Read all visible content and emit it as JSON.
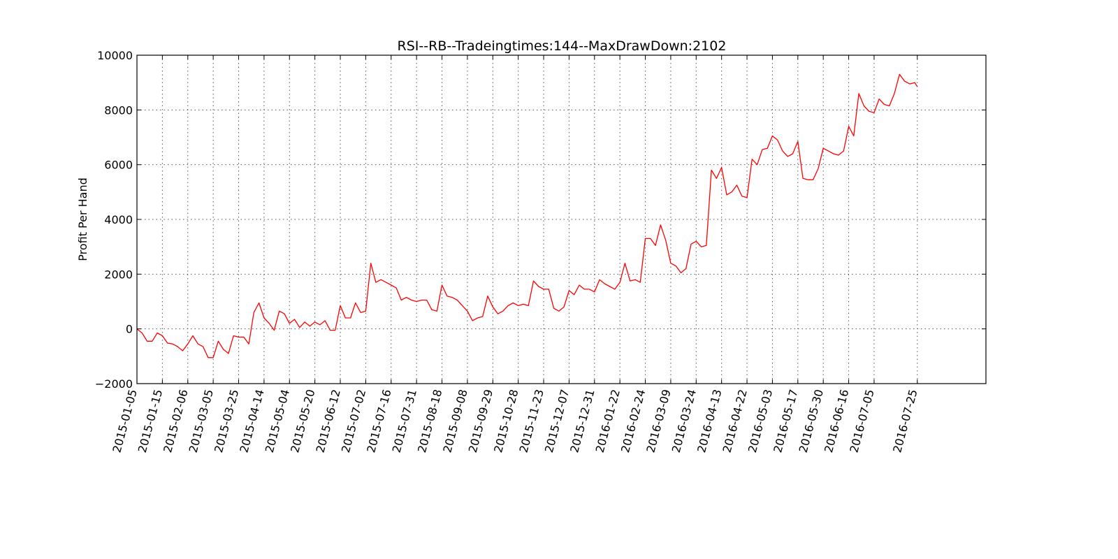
{
  "chart_data": {
    "type": "line",
    "title": "RSI--RB--Tradeingtimes:144--MaxDrawDown:2102",
    "xlabel": "",
    "ylabel": "Profit Per Hand",
    "ylim": [
      -2000,
      10000
    ],
    "yticks": [
      -2000,
      0,
      2000,
      4000,
      6000,
      8000,
      10000
    ],
    "ytick_labels": [
      "−2000",
      "0",
      "2000",
      "4000",
      "6000",
      "8000",
      "10000"
    ],
    "xticks": [
      "2015-01-05",
      "2015-01-15",
      "2015-02-06",
      "2015-03-05",
      "2015-03-25",
      "2015-04-14",
      "2015-05-04",
      "2015-05-20",
      "2015-06-12",
      "2015-07-02",
      "2015-07-16",
      "2015-07-31",
      "2015-08-18",
      "2015-09-08",
      "2015-09-29",
      "2015-10-28",
      "2015-11-23",
      "2015-12-07",
      "2015-12-31",
      "2016-01-22",
      "2016-02-24",
      "2016-03-09",
      "2016-03-24",
      "2016-04-13",
      "2016-04-22",
      "2016-05-03",
      "2016-05-17",
      "2016-05-30",
      "2016-06-16",
      "2016-07-05",
      "2016-07-25"
    ],
    "xtick_index": [
      0,
      10,
      20,
      30,
      40,
      50,
      60,
      70,
      80,
      90,
      100,
      110,
      120,
      130,
      140,
      150,
      160,
      170,
      180,
      190,
      200,
      210,
      220,
      230,
      240,
      250,
      260,
      270,
      280,
      290,
      307
    ],
    "x_index_max": 334,
    "grid": true,
    "line_color": "#ff0000",
    "series": [
      {
        "name": "",
        "x": [
          0,
          2,
          4,
          6,
          8,
          10,
          12,
          14,
          16,
          18,
          20,
          22,
          24,
          26,
          28,
          30,
          32,
          34,
          36,
          38,
          40,
          42,
          44,
          46,
          48,
          50,
          52,
          54,
          56,
          58,
          60,
          62,
          64,
          66,
          68,
          70,
          72,
          74,
          76,
          78,
          80,
          82,
          84,
          86,
          88,
          90,
          92,
          94,
          96,
          98,
          100,
          102,
          104,
          106,
          108,
          110,
          112,
          114,
          116,
          118,
          120,
          122,
          124,
          126,
          128,
          130,
          132,
          134,
          136,
          138,
          140,
          142,
          144,
          146,
          148,
          150,
          152,
          154,
          156,
          158,
          160,
          162,
          164,
          166,
          168,
          170,
          172,
          174,
          176,
          178,
          180,
          182,
          184,
          186,
          188,
          190,
          192,
          194,
          196,
          198,
          200,
          202,
          204,
          206,
          208,
          210,
          212,
          214,
          216,
          218,
          220,
          222,
          224,
          226,
          228,
          230,
          232,
          234,
          236,
          238,
          240,
          242,
          244,
          246,
          248,
          250,
          252,
          254,
          256,
          258,
          260,
          262,
          264,
          266,
          268,
          270,
          272,
          274,
          276,
          278,
          280,
          282,
          284,
          286,
          288,
          290,
          292,
          294,
          296,
          298,
          300,
          302,
          304,
          306,
          307
        ],
        "values": [
          0,
          -150,
          -450,
          -450,
          -150,
          -250,
          -520,
          -550,
          -650,
          -800,
          -550,
          -250,
          -550,
          -650,
          -1050,
          -1050,
          -450,
          -750,
          -900,
          -250,
          -300,
          -300,
          -550,
          600,
          950,
          400,
          200,
          -50,
          650,
          550,
          200,
          350,
          50,
          250,
          100,
          250,
          150,
          300,
          -50,
          -50,
          850,
          400,
          400,
          950,
          600,
          650,
          2400,
          1700,
          1800,
          1700,
          1600,
          1500,
          1050,
          1150,
          1050,
          1000,
          1050,
          1050,
          700,
          650,
          1600,
          1200,
          1150,
          1050,
          850,
          650,
          300,
          400,
          450,
          1200,
          800,
          550,
          650,
          850,
          950,
          850,
          900,
          850,
          1750,
          1550,
          1450,
          1450,
          750,
          650,
          800,
          1400,
          1250,
          1600,
          1450,
          1450,
          1350,
          1800,
          1650,
          1550,
          1450,
          1700,
          2400,
          1750,
          1800,
          1700,
          3300,
          3300,
          3050,
          3800,
          3250,
          2400,
          2300,
          2050,
          2200,
          3100,
          3200,
          3000,
          3050,
          5800,
          5500,
          5900,
          4900,
          5000,
          5250,
          4850,
          4800,
          6200,
          6000,
          6550,
          6600,
          7050,
          6900,
          6500,
          6300,
          6400,
          6850,
          5500,
          5450,
          5450,
          5850,
          6600,
          6500,
          6400,
          6350,
          6500,
          7400,
          7050,
          8600,
          8150,
          7950,
          7900,
          8400,
          8200,
          8150,
          8600,
          9300,
          9050,
          8950,
          9000,
          8850
        ]
      }
    ]
  }
}
